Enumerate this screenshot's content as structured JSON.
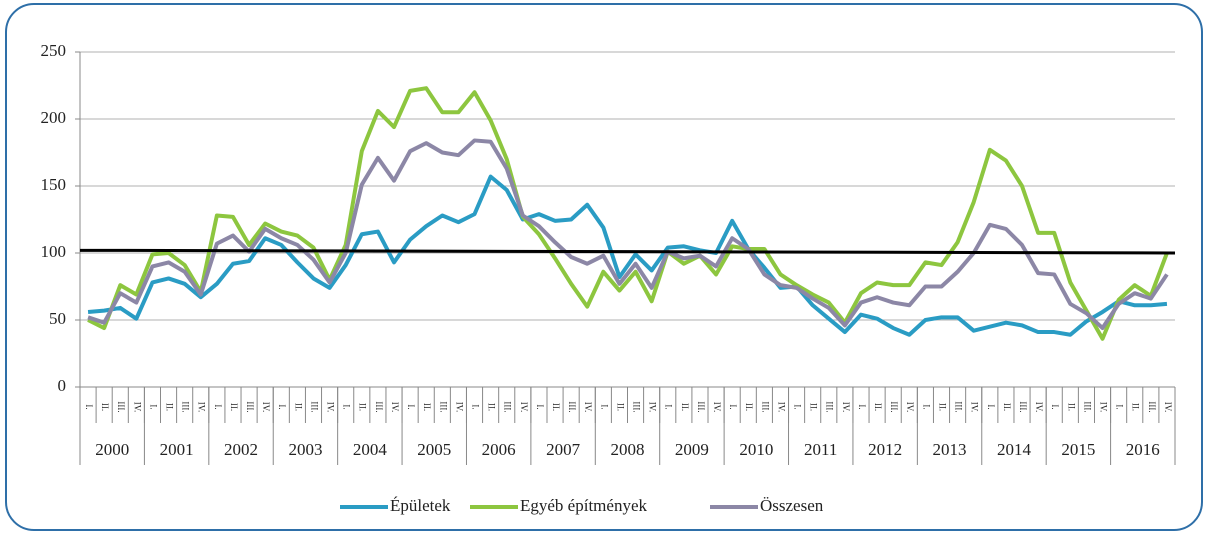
{
  "chart_data": {
    "type": "line",
    "categories": [
      "I.",
      "II.",
      "III.",
      "IV.",
      "I.",
      "II.",
      "III.",
      "IV.",
      "I.",
      "II.",
      "III.",
      "IV.",
      "I.",
      "II.",
      "III.",
      "IV.",
      "I.",
      "II.",
      "III.",
      "IV.",
      "I.",
      "II.",
      "III.",
      "IV.",
      "I.",
      "II.",
      "III.",
      "IV.",
      "I.",
      "II.",
      "III.",
      "IV.",
      "I.",
      "II.",
      "III.",
      "IV.",
      "I.",
      "II.",
      "III.",
      "IV.",
      "I.",
      "II.",
      "III.",
      "IV.",
      "I.",
      "II.",
      "III.",
      "IV.",
      "I.",
      "II.",
      "III.",
      "IV.",
      "I.",
      "II.",
      "III.",
      "IV.",
      "I.",
      "II.",
      "III.",
      "IV.",
      "I.",
      "II.",
      "III.",
      "IV.",
      "I.",
      "II.",
      "III.",
      "IV."
    ],
    "year_groups": [
      "2000",
      "2001",
      "2002",
      "2003",
      "2004",
      "2005",
      "2006",
      "2007",
      "2008",
      "2009",
      "2010",
      "2011",
      "2012",
      "2013",
      "2014",
      "2015",
      "2016"
    ],
    "series": [
      {
        "name": "Épületek",
        "color": "#2a9cc4",
        "values": [
          56,
          57,
          59,
          51,
          78,
          81,
          77,
          67,
          77,
          92,
          94,
          111,
          106,
          93,
          81,
          74,
          91,
          114,
          116,
          93,
          110,
          120,
          128,
          123,
          129,
          157,
          147,
          125,
          129,
          124,
          125,
          136,
          119,
          82,
          99,
          87,
          104,
          105,
          102,
          100,
          124,
          103,
          89,
          74,
          75,
          61,
          51,
          41,
          54,
          51,
          44,
          39,
          50,
          52,
          52,
          42,
          45,
          48,
          46,
          41,
          41,
          39,
          49,
          56,
          64,
          61,
          61,
          62
        ]
      },
      {
        "name": "Egyéb építmények",
        "color": "#8dc63f",
        "values": [
          50,
          44,
          76,
          69,
          99,
          100,
          91,
          71,
          128,
          127,
          106,
          122,
          116,
          113,
          104,
          80,
          106,
          176,
          206,
          194,
          221,
          223,
          205,
          205,
          220,
          199,
          170,
          127,
          114,
          96,
          77,
          60,
          86,
          72,
          86,
          64,
          101,
          92,
          98,
          84,
          105,
          103,
          103,
          84,
          76,
          69,
          63,
          48,
          70,
          78,
          76,
          76,
          93,
          91,
          108,
          138,
          177,
          169,
          150,
          115,
          115,
          78,
          57,
          36,
          65,
          76,
          68,
          100
        ]
      },
      {
        "name": "Összesen",
        "color": "#8c87a6",
        "values": [
          52,
          48,
          70,
          63,
          90,
          93,
          86,
          69,
          107,
          113,
          101,
          118,
          111,
          106,
          95,
          78,
          100,
          151,
          171,
          154,
          176,
          182,
          175,
          173,
          184,
          183,
          163,
          128,
          120,
          108,
          97,
          92,
          98,
          77,
          92,
          74,
          101,
          96,
          98,
          90,
          111,
          103,
          84,
          76,
          74,
          66,
          59,
          46,
          63,
          67,
          63,
          61,
          75,
          75,
          86,
          100,
          121,
          118,
          106,
          85,
          84,
          62,
          55,
          44,
          62,
          70,
          66,
          84
        ]
      }
    ],
    "reference_line": {
      "color": "#000000",
      "values": [
        102,
        100
      ]
    },
    "ylim": [
      0,
      250
    ],
    "yticks": [
      0,
      50,
      100,
      150,
      200,
      250
    ],
    "grid": true
  }
}
